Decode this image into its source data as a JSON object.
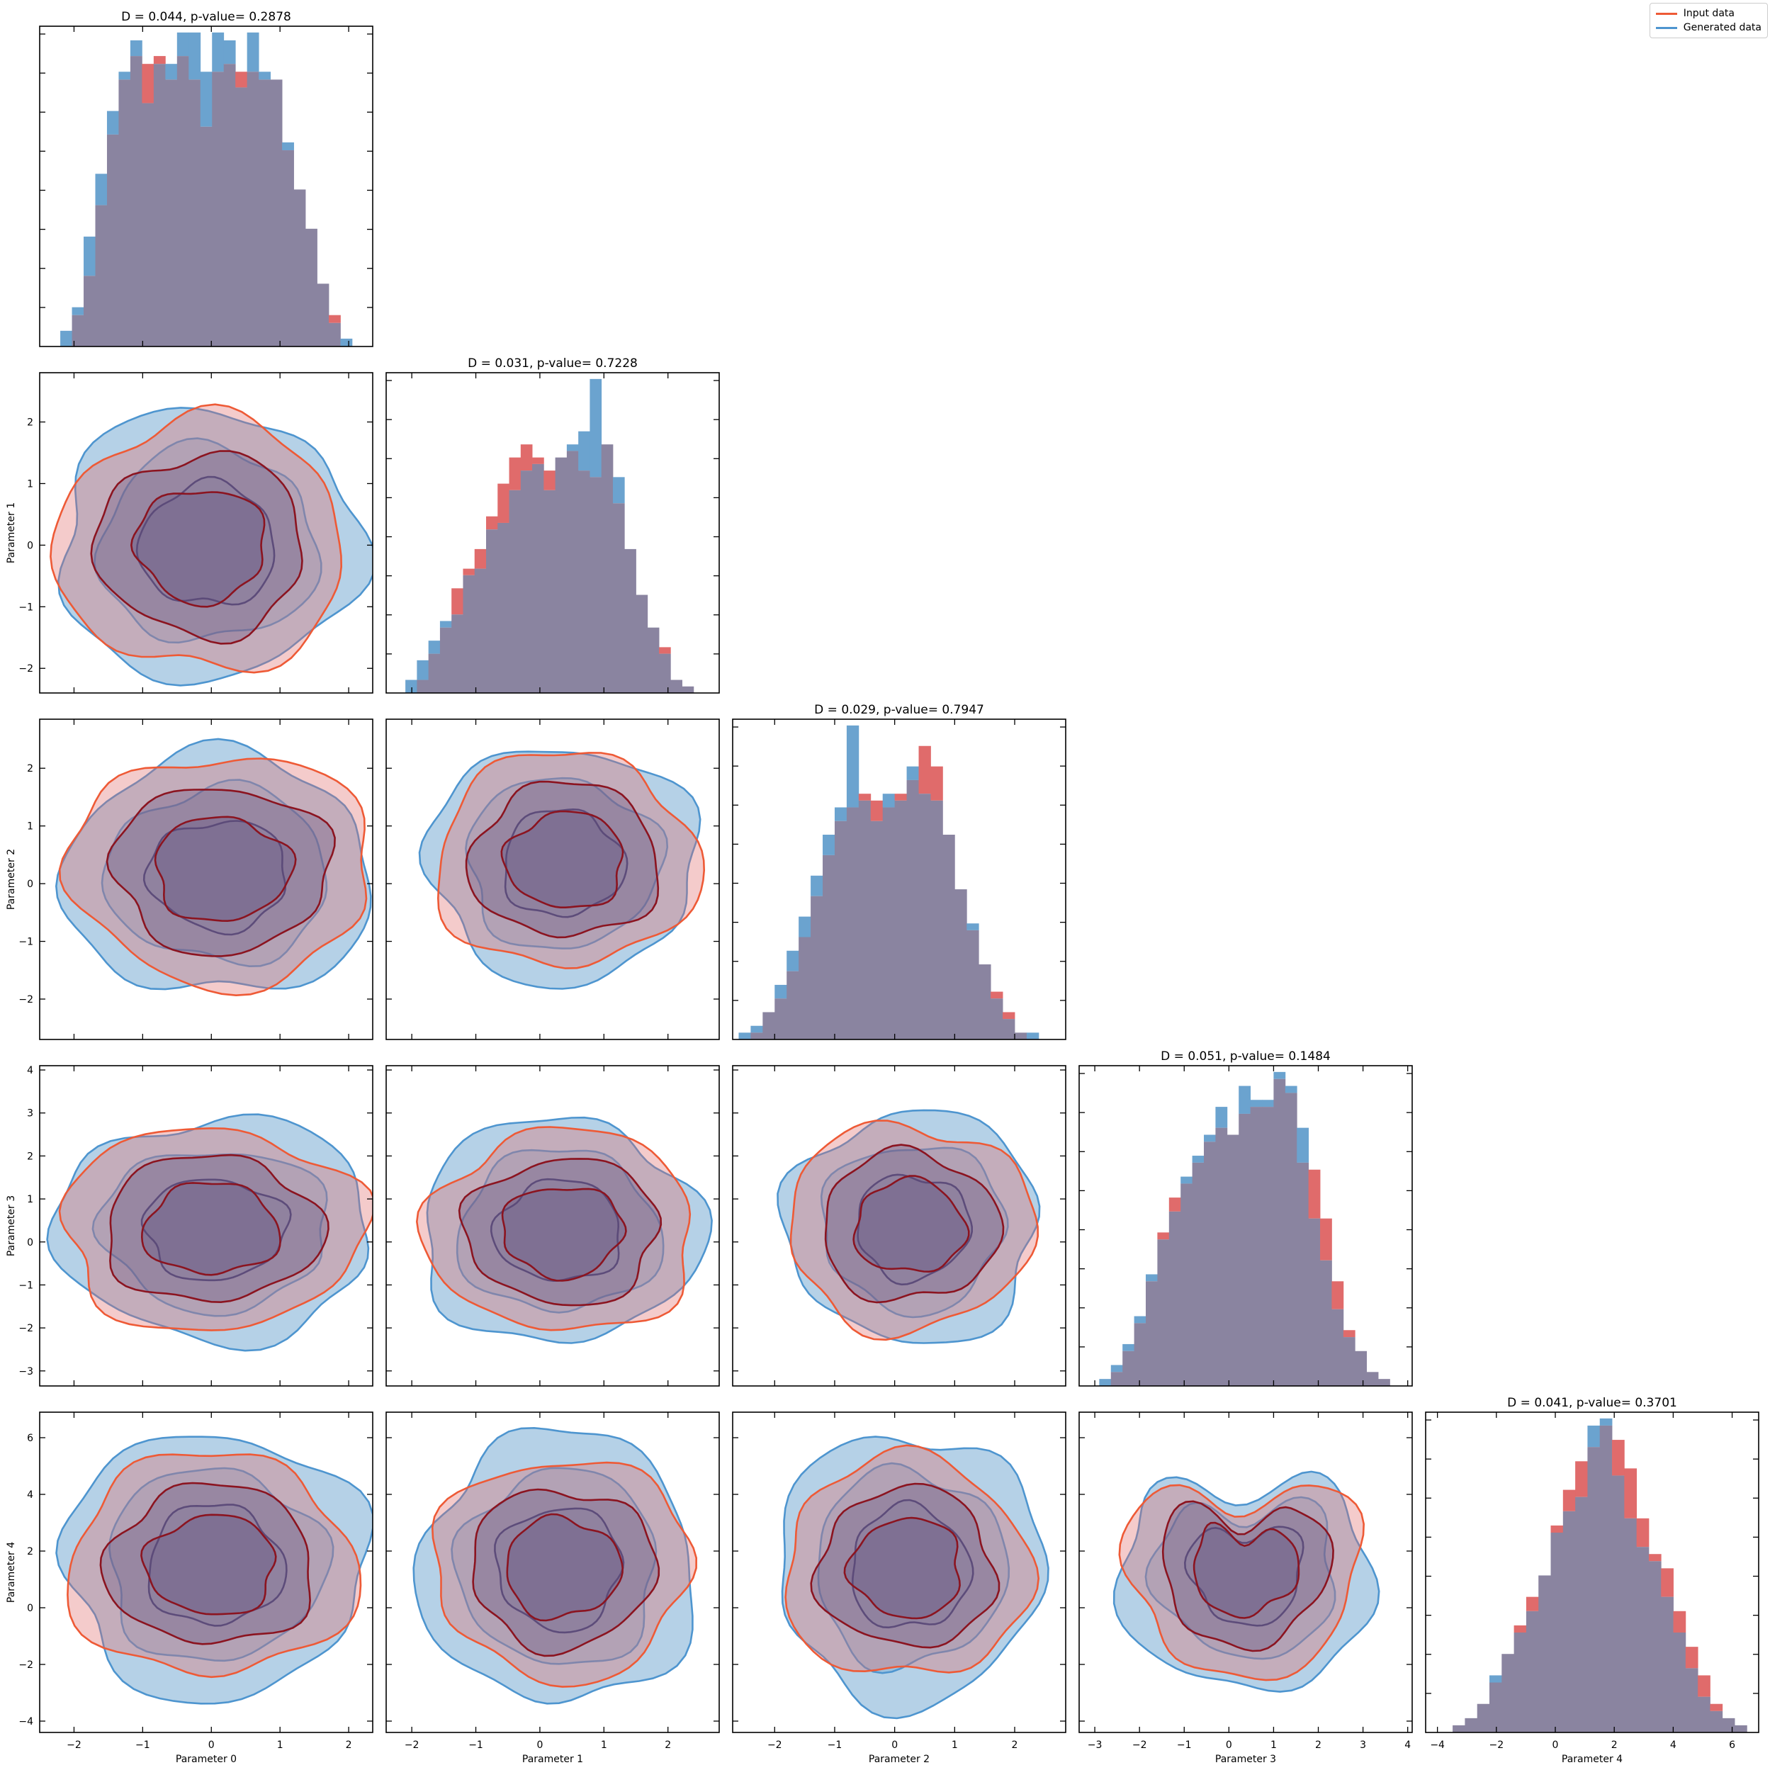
{
  "legend": {
    "placement": "top-right",
    "input_label": "Input data",
    "generated_label": "Generated data"
  },
  "colors": {
    "input_fill": "#e06b6b",
    "generated_fill": "#6ba3cf",
    "overlap_fill": "#8a84a0",
    "input_line": "#ee5a36",
    "generated_line": "#4e95cf",
    "input_inner_line": "#8b1420",
    "generated_inner_line": "#1b3f86"
  },
  "axis_labels": {
    "x": [
      "Parameter 0",
      "Parameter 1",
      "Parameter 2",
      "Parameter 3",
      "Parameter 4"
    ],
    "y": [
      "",
      "Parameter 1",
      "Parameter 2",
      "Parameter 3",
      "Parameter 4"
    ]
  },
  "chart_data": {
    "type": "corner",
    "n_params": 5,
    "grid": false,
    "param_ranges": [
      [
        -2.5,
        2.35
      ],
      [
        -2.4,
        2.8
      ],
      [
        -2.7,
        2.85
      ],
      [
        -3.35,
        4.1
      ],
      [
        -4.4,
        6.9
      ]
    ],
    "ticks": [
      [
        -2,
        -1,
        0,
        1,
        2
      ],
      [
        -2,
        -1,
        0,
        1,
        2
      ],
      [
        -2,
        -1,
        0,
        1,
        2
      ],
      [
        -3,
        -2,
        -1,
        0,
        1,
        2,
        3,
        4
      ],
      [
        -4,
        -2,
        0,
        2,
        4,
        6
      ]
    ],
    "histograms": [
      {
        "param": 0,
        "title": "D = 0.044, p-value= 0.2878",
        "D": 0.044,
        "p_value": 0.2878,
        "range": [
          -2.2,
          2.05
        ],
        "input": [
          0,
          20,
          45,
          90,
          135,
          170,
          185,
          180,
          185,
          170,
          185,
          170,
          140,
          175,
          180,
          175,
          175,
          170,
          170,
          125,
          100,
          75,
          40,
          20,
          0
        ],
        "generated": [
          10,
          25,
          70,
          110,
          150,
          175,
          195,
          155,
          180,
          180,
          200,
          200,
          175,
          200,
          195,
          165,
          200,
          175,
          170,
          130,
          100,
          75,
          40,
          15,
          5
        ]
      },
      {
        "param": 1,
        "title": "D = 0.031, p-value= 0.7228",
        "D": 0.031,
        "p_value": 0.7228,
        "range": [
          -2.1,
          2.4
        ],
        "input": [
          0,
          10,
          30,
          50,
          80,
          95,
          110,
          135,
          160,
          180,
          190,
          180,
          170,
          180,
          185,
          170,
          165,
          190,
          145,
          110,
          75,
          50,
          35,
          10,
          5
        ],
        "generated": [
          10,
          25,
          40,
          55,
          60,
          90,
          95,
          125,
          130,
          155,
          170,
          175,
          155,
          180,
          190,
          200,
          240,
          190,
          165,
          110,
          75,
          50,
          30,
          10,
          5
        ]
      },
      {
        "param": 2,
        "title": "D = 0.029, p-value= 0.7947",
        "D": 0.029,
        "p_value": 0.7947,
        "range": [
          -2.6,
          2.4
        ],
        "input": [
          0,
          5,
          20,
          30,
          50,
          75,
          105,
          135,
          160,
          170,
          180,
          175,
          170,
          180,
          190,
          215,
          200,
          150,
          110,
          80,
          55,
          35,
          20,
          5,
          0
        ],
        "generated": [
          5,
          10,
          20,
          40,
          65,
          90,
          120,
          150,
          170,
          230,
          175,
          160,
          180,
          175,
          200,
          180,
          175,
          150,
          110,
          85,
          55,
          30,
          15,
          5,
          5
        ]
      },
      {
        "param": 3,
        "title": "D = 0.051, p-value= 0.1484",
        "D": 0.051,
        "p_value": 0.1484,
        "range": [
          -2.9,
          3.6
        ],
        "input": [
          0,
          10,
          25,
          45,
          75,
          110,
          135,
          145,
          160,
          175,
          185,
          180,
          195,
          200,
          200,
          220,
          210,
          160,
          155,
          120,
          75,
          40,
          25,
          10,
          5
        ],
        "generated": [
          5,
          15,
          30,
          50,
          80,
          105,
          125,
          150,
          165,
          180,
          200,
          180,
          215,
          205,
          205,
          225,
          215,
          185,
          120,
          90,
          55,
          35,
          25,
          10,
          5
        ]
      },
      {
        "param": 4,
        "title": "D = 0.041, p-value= 0.3701",
        "D": 0.041,
        "p_value": 0.3701,
        "range": [
          -3.9,
          6.5
        ],
        "input": [
          0,
          5,
          10,
          20,
          35,
          55,
          75,
          95,
          110,
          145,
          170,
          190,
          200,
          215,
          205,
          185,
          150,
          125,
          115,
          85,
          60,
          40,
          20,
          10,
          5
        ],
        "generated": [
          0,
          5,
          10,
          20,
          40,
          55,
          70,
          85,
          110,
          140,
          155,
          165,
          215,
          220,
          180,
          150,
          130,
          120,
          95,
          70,
          45,
          25,
          15,
          10,
          5
        ]
      }
    ],
    "contours": [
      {
        "x": 0,
        "y": 1,
        "input": {
          "cx": -0.15,
          "cy": 0.0,
          "rx": 2.1,
          "ry": 2.05
        },
        "generated": {
          "cx": -0.05,
          "cy": 0.0,
          "rx": 2.2,
          "ry": 2.2
        }
      },
      {
        "x": 0,
        "y": 2,
        "input": {
          "cx": 0.15,
          "cy": 0.25,
          "rx": 2.2,
          "ry": 2.0
        },
        "generated": {
          "cx": 0.1,
          "cy": 0.15,
          "rx": 2.25,
          "ry": 2.1
        }
      },
      {
        "x": 1,
        "y": 2,
        "input": {
          "cx": 0.4,
          "cy": 0.4,
          "rx": 2.05,
          "ry": 1.85
        },
        "generated": {
          "cx": 0.35,
          "cy": 0.35,
          "rx": 2.1,
          "ry": 2.05
        }
      },
      {
        "x": 0,
        "y": 3,
        "input": {
          "cx": 0.0,
          "cy": 0.3,
          "rx": 2.2,
          "ry": 2.35
        },
        "generated": {
          "cx": 0.05,
          "cy": 0.3,
          "rx": 2.3,
          "ry": 2.6
        }
      },
      {
        "x": 1,
        "y": 3,
        "input": {
          "cx": 0.35,
          "cy": 0.25,
          "rx": 2.1,
          "ry": 2.35
        },
        "generated": {
          "cx": 0.3,
          "cy": 0.25,
          "rx": 2.2,
          "ry": 2.6
        }
      },
      {
        "x": 2,
        "y": 3,
        "input": {
          "cx": 0.25,
          "cy": 0.35,
          "rx": 2.05,
          "ry": 2.4
        },
        "generated": {
          "cx": 0.3,
          "cy": 0.35,
          "rx": 2.1,
          "ry": 2.7
        }
      },
      {
        "x": 0,
        "y": 4,
        "input": {
          "cx": 0.0,
          "cy": 1.5,
          "rx": 2.1,
          "ry": 3.9
        },
        "generated": {
          "cx": 0.05,
          "cy": 1.5,
          "rx": 2.2,
          "ry": 4.7
        }
      },
      {
        "x": 1,
        "y": 4,
        "input": {
          "cx": 0.35,
          "cy": 1.4,
          "rx": 2.0,
          "ry": 3.9
        },
        "generated": {
          "cx": 0.3,
          "cy": 1.4,
          "rx": 2.15,
          "ry": 4.8
        }
      },
      {
        "x": 2,
        "y": 4,
        "input": {
          "cx": 0.2,
          "cy": 1.4,
          "rx": 2.05,
          "ry": 3.9
        },
        "generated": {
          "cx": 0.25,
          "cy": 1.4,
          "rx": 2.2,
          "ry": 4.8
        }
      },
      {
        "x": 3,
        "y": 4,
        "input": {
          "cx": 0.35,
          "cy": 1.5,
          "rx": 2.6,
          "ry": 3.9
        },
        "generated": {
          "cx": 0.4,
          "cy": 1.4,
          "rx": 2.8,
          "ry": 4.4
        },
        "shape": "v"
      }
    ]
  }
}
